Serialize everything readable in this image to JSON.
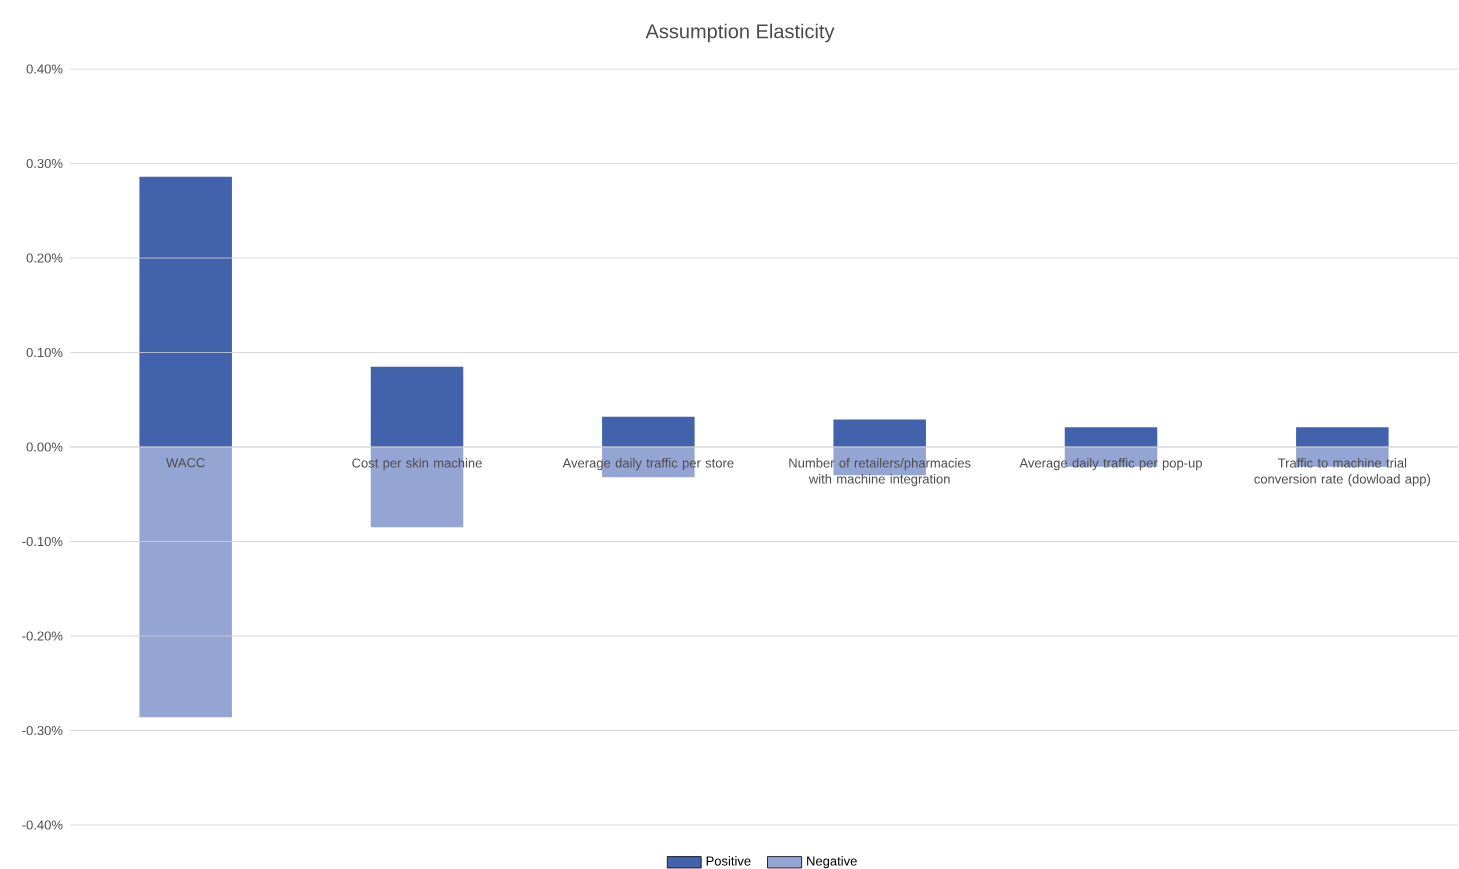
{
  "chart_data": {
    "type": "bar",
    "title": "Assumption Elasticity",
    "categories": [
      "WACC",
      "Cost per skin machine",
      "Average daily traffic per store",
      "Number of retailers/pharmacies with machine integration",
      "Average daily traffic per pop-up",
      "Traffic to machine trial conversion rate (dowload app)"
    ],
    "series": [
      {
        "name": "Positive",
        "color": "#4263ab",
        "values": [
          0.286,
          0.085,
          0.032,
          0.029,
          0.021,
          0.021
        ]
      },
      {
        "name": "Negative",
        "color": "#95a5d3",
        "values": [
          -0.286,
          -0.085,
          -0.032,
          -0.03,
          -0.021,
          -0.021
        ]
      }
    ],
    "ylim": [
      -0.4,
      0.4
    ],
    "yticks": [
      {
        "value": -0.4,
        "label": "-0.40%"
      },
      {
        "value": -0.3,
        "label": "-0.30%"
      },
      {
        "value": -0.2,
        "label": "-0.20%"
      },
      {
        "value": -0.1,
        "label": "-0.10%"
      },
      {
        "value": 0,
        "label": "0.00%"
      },
      {
        "value": 0.1,
        "label": "0.10%"
      },
      {
        "value": 0.2,
        "label": "0.20%"
      },
      {
        "value": 0.3,
        "label": "0.30%"
      },
      {
        "value": 0.4,
        "label": "0.40%"
      }
    ],
    "grid": "y",
    "legend": "bottom",
    "stacked": true
  }
}
